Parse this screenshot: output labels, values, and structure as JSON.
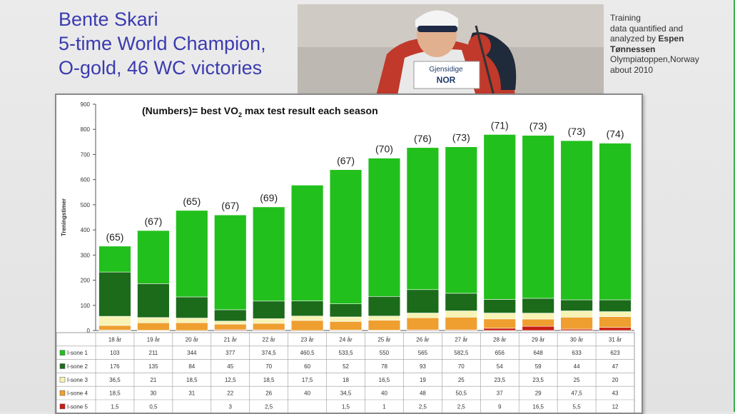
{
  "slide": {
    "title_lines": [
      "Bente Skari",
      "5-time World Champion,",
      "O-gold, 46 WC victories"
    ],
    "credit_lines": [
      "Training",
      "data quantified and",
      "analyzed by"
    ],
    "credit_name_1": "Espen",
    "credit_name_2": "Tønnessen",
    "credit_org": "Olympiatoppen,Norway",
    "credit_date": "about 2010",
    "photo_bib_text": "Gjensidige",
    "photo_bib_country": "NOR"
  },
  "colors": {
    "i1": "#22c01c",
    "i2": "#1b6b1b",
    "i3": "#f7f3b4",
    "i4": "#ee9f2f",
    "i5": "#c81d12"
  },
  "chart_data": {
    "type": "bar",
    "stacked": true,
    "title_pre": "(Numbers)= best VO",
    "title_sub": "2",
    "title_post": " max test result each season",
    "ylabel": "Treningstimer",
    "ylim": [
      0,
      900
    ],
    "yticks": [
      0,
      100,
      200,
      300,
      400,
      500,
      600,
      700,
      800,
      900
    ],
    "categories": [
      "18 år",
      "19 år",
      "20 år",
      "21 år",
      "22 år",
      "23 år",
      "24 år",
      "25 år",
      "26 år",
      "27 år",
      "28 år",
      "29 år",
      "30 år",
      "31 år"
    ],
    "annotations": [
      "(65)",
      "(67)",
      "(65)",
      "(67)",
      "(69)",
      "",
      "(67)",
      "(70)",
      "(76)",
      "(73)",
      "(71)",
      "(73)",
      "(73)",
      "(74)"
    ],
    "series": [
      {
        "name": "I-sone 1",
        "color_key": "i1",
        "values": [
          103,
          211,
          344,
          377,
          374.5,
          460.5,
          533.5,
          550,
          565,
          582.5,
          656,
          648,
          633,
          623
        ]
      },
      {
        "name": "I-sone 2",
        "color_key": "i2",
        "values": [
          176,
          135,
          84,
          45,
          70,
          60,
          52,
          78,
          93,
          70,
          54,
          59,
          44,
          47
        ]
      },
      {
        "name": "I-sone 3",
        "color_key": "i3",
        "values": [
          36.5,
          21,
          18.5,
          12.5,
          18.5,
          17.5,
          18,
          16.5,
          19,
          25,
          23.5,
          23.5,
          25,
          20
        ]
      },
      {
        "name": "I-sone 4",
        "color_key": "i4",
        "values": [
          18.5,
          30,
          31,
          22,
          26,
          40,
          34.5,
          40,
          48,
          50.5,
          37,
          29,
          47.5,
          43
        ]
      },
      {
        "name": "I-sone 5",
        "color_key": "i5",
        "values": [
          1.5,
          0.5,
          null,
          3,
          2.5,
          null,
          1.5,
          1,
          2.5,
          2.5,
          9,
          16.5,
          5.5,
          12
        ]
      }
    ],
    "table_labels": [
      [
        "103",
        "211",
        "344",
        "377",
        "374,5",
        "460,5",
        "533,5",
        "550",
        "565",
        "582,5",
        "656",
        "648",
        "633",
        "623"
      ],
      [
        "176",
        "135",
        "84",
        "45",
        "70",
        "60",
        "52",
        "78",
        "93",
        "70",
        "54",
        "59",
        "44",
        "47"
      ],
      [
        "36,5",
        "21",
        "18,5",
        "12,5",
        "18,5",
        "17,5",
        "18",
        "16,5",
        "19",
        "25",
        "23,5",
        "23,5",
        "25",
        "20"
      ],
      [
        "18,5",
        "30",
        "31",
        "22",
        "26",
        "40",
        "34,5",
        "40",
        "48",
        "50,5",
        "37",
        "29",
        "47,5",
        "43"
      ],
      [
        "1,5",
        "0,5",
        "",
        "3",
        "2,5",
        "",
        "1,5",
        "1",
        "2,5",
        "2,5",
        "9",
        "16,5",
        "5,5",
        "12"
      ]
    ],
    "grid": false,
    "legend": "data-table"
  }
}
